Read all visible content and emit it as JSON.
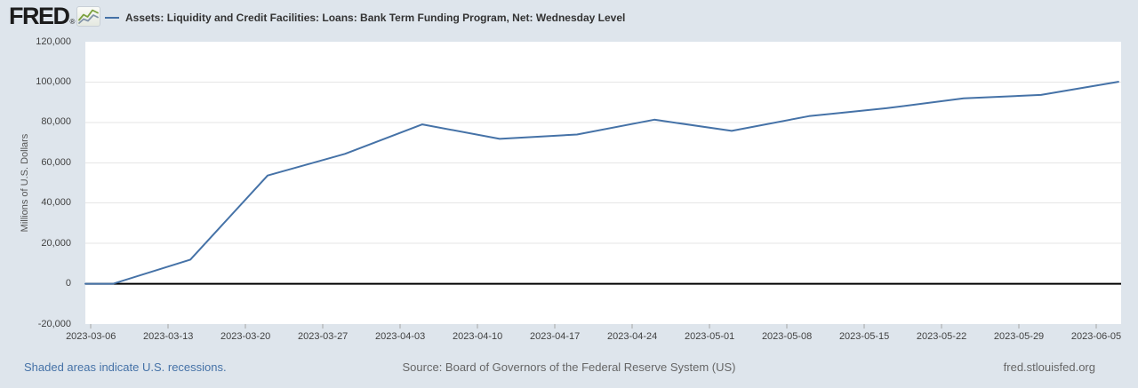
{
  "header": {
    "logo_text": "FRED",
    "registered_mark": "®",
    "legend_label": "Assets: Liquidity and Credit Facilities: Loans: Bank Term Funding Program, Net: Wednesday Level"
  },
  "footer": {
    "recessions_note": "Shaded areas indicate U.S. recessions.",
    "source": "Source: Board of Governors of the Federal Reserve System (US)",
    "site": "fred.stlouisfed.org"
  },
  "colors": {
    "background": "#dee5ec",
    "plot_background": "#ffffff",
    "series_line": "#4572a7",
    "zero_line": "#000000",
    "gridline": "#e6e6e6",
    "tick_mark": "#a6a6a6",
    "tick_text": "#424242",
    "axis_title_text": "#555555",
    "title_text": "#333333",
    "link_text": "#4572a7",
    "muted_text": "#666666"
  },
  "chart_data": {
    "type": "line",
    "title": "Assets: Liquidity and Credit Facilities: Loans: Bank Term Funding Program, Net: Wednesday Level",
    "xlabel": "",
    "ylabel": "Millions of U.S. Dollars",
    "grid": "horizontal",
    "legend_position": "top-left",
    "ylim": [
      -20000,
      120000
    ],
    "xlim": [
      "2023-03-05T12:00:00",
      "2023-06-07T06:00:00"
    ],
    "zero_line": true,
    "extend_first_value_to_left_edge": true,
    "yticks": [
      {
        "value": -20000,
        "label": "-20,000"
      },
      {
        "value": 0,
        "label": "0"
      },
      {
        "value": 20000,
        "label": "20,000"
      },
      {
        "value": 40000,
        "label": "40,000"
      },
      {
        "value": 60000,
        "label": "60,000"
      },
      {
        "value": 80000,
        "label": "80,000"
      },
      {
        "value": 100000,
        "label": "100,000"
      },
      {
        "value": 120000,
        "label": "120,000"
      }
    ],
    "xticks": [
      "2023-03-06",
      "2023-03-13",
      "2023-03-20",
      "2023-03-27",
      "2023-04-03",
      "2023-04-10",
      "2023-04-17",
      "2023-04-24",
      "2023-05-01",
      "2023-05-08",
      "2023-05-15",
      "2023-05-22",
      "2023-05-29",
      "2023-06-05"
    ],
    "series": [
      {
        "name": "Assets: Liquidity and Credit Facilities: Loans: Bank Term Funding Program, Net: Wednesday Level",
        "color": "#4572a7",
        "points": [
          {
            "date": "2023-03-08",
            "value": 0
          },
          {
            "date": "2023-03-15",
            "value": 11943
          },
          {
            "date": "2023-03-22",
            "value": 53669
          },
          {
            "date": "2023-03-29",
            "value": 64403
          },
          {
            "date": "2023-04-05",
            "value": 79021
          },
          {
            "date": "2023-04-12",
            "value": 71837
          },
          {
            "date": "2023-04-19",
            "value": 73982
          },
          {
            "date": "2023-04-26",
            "value": 81327
          },
          {
            "date": "2023-05-03",
            "value": 75778
          },
          {
            "date": "2023-05-10",
            "value": 83101
          },
          {
            "date": "2023-05-17",
            "value": 87006
          },
          {
            "date": "2023-05-24",
            "value": 91907
          },
          {
            "date": "2023-05-31",
            "value": 93615
          },
          {
            "date": "2023-06-07",
            "value": 100161
          }
        ]
      }
    ]
  }
}
